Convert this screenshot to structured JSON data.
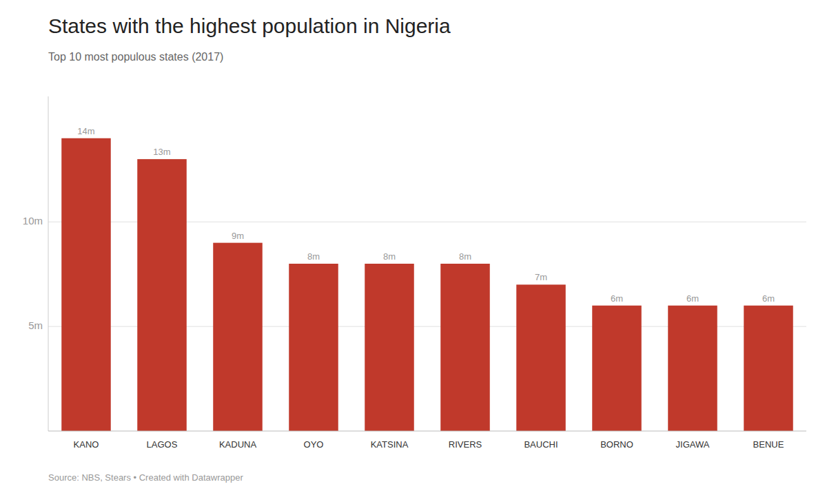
{
  "chart_data": {
    "type": "bar",
    "title": "States with the highest population in Nigeria",
    "subtitle": "Top 10 most populous states (2017)",
    "source": "Source: NBS, Stears • Created with Datawrapper",
    "categories": [
      "KANO",
      "LAGOS",
      "KADUNA",
      "OYO",
      "KATSINA",
      "RIVERS",
      "BAUCHI",
      "BORNO",
      "JIGAWA",
      "BENUE"
    ],
    "values": [
      14,
      13,
      9,
      8,
      8,
      8,
      7,
      6,
      6,
      6
    ],
    "value_labels": [
      "14m",
      "13m",
      "9m",
      "8m",
      "8m",
      "8m",
      "7m",
      "6m",
      "6m",
      "6m"
    ],
    "data_labels": true,
    "color": "#c0392b",
    "ylim": [
      0,
      16
    ],
    "yticks": [
      {
        "value": 5,
        "label": "5m"
      },
      {
        "value": 10,
        "label": "10m"
      }
    ],
    "grid": true
  }
}
